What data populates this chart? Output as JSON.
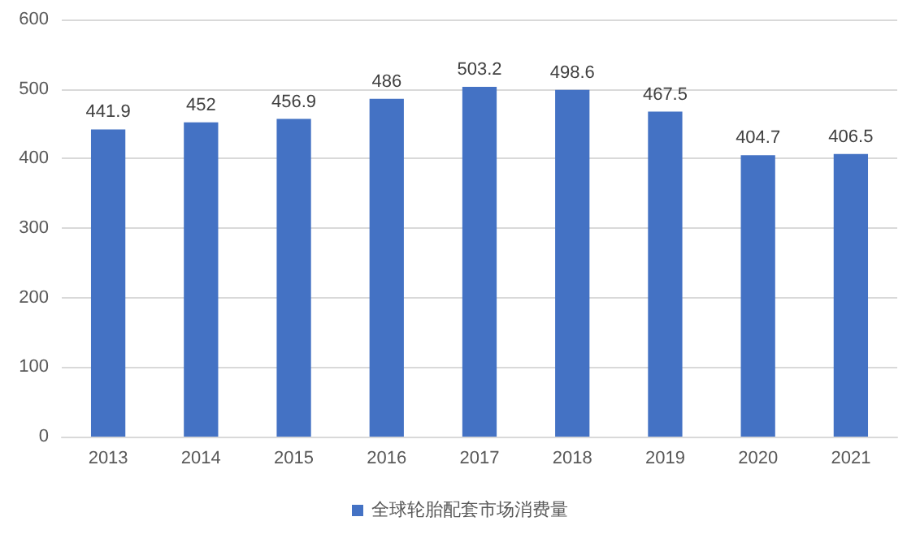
{
  "chart_data": {
    "type": "bar",
    "categories": [
      "2013",
      "2014",
      "2015",
      "2016",
      "2017",
      "2018",
      "2019",
      "2020",
      "2021"
    ],
    "series": [
      {
        "name": "全球轮胎配套市场消费量",
        "color": "#4472c4",
        "values": [
          441.9,
          452,
          456.9,
          486,
          503.2,
          498.6,
          467.5,
          404.7,
          406.5
        ]
      }
    ],
    "ylim": [
      0,
      600
    ],
    "yticks": [
      0,
      100,
      200,
      300,
      400,
      500,
      600
    ],
    "grid": "y",
    "legend": "bottom",
    "data_labels": true
  }
}
